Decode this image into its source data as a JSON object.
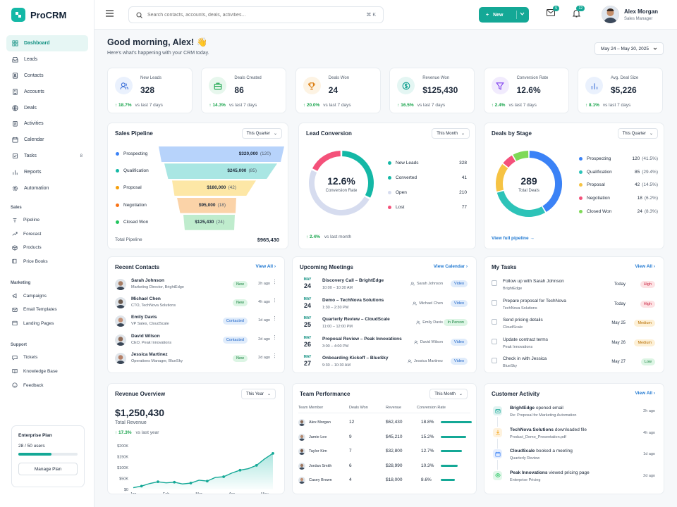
{
  "app": {
    "name": "ProCRM"
  },
  "sidebar": {
    "items": [
      {
        "label": "Dashboard",
        "icon": "grid-icon",
        "active": true
      },
      {
        "label": "Leads",
        "icon": "inbox-icon"
      },
      {
        "label": "Contacts",
        "icon": "contact-card-icon"
      },
      {
        "label": "Accounts",
        "icon": "building-icon"
      },
      {
        "label": "Deals",
        "icon": "money-icon"
      },
      {
        "label": "Activities",
        "icon": "clipboard-icon"
      },
      {
        "label": "Calendar",
        "icon": "calendar-icon"
      },
      {
        "label": "Tasks",
        "icon": "checklist-icon",
        "badge": "8"
      },
      {
        "label": "Reports",
        "icon": "chart-icon"
      },
      {
        "label": "Automation",
        "icon": "gear-icon"
      }
    ],
    "sections": [
      {
        "title": "Sales",
        "items": [
          {
            "label": "Pipeline",
            "icon": "pipeline-icon"
          },
          {
            "label": "Forecast",
            "icon": "trend-icon"
          },
          {
            "label": "Products",
            "icon": "box-icon"
          },
          {
            "label": "Price Books",
            "icon": "book-icon"
          }
        ]
      },
      {
        "title": "Marketing",
        "items": [
          {
            "label": "Campaigns",
            "icon": "megaphone-icon"
          },
          {
            "label": "Email Templates",
            "icon": "mail-icon"
          },
          {
            "label": "Landing Pages",
            "icon": "page-icon"
          }
        ]
      },
      {
        "title": "Support",
        "items": [
          {
            "label": "Tickets",
            "icon": "chat-icon"
          },
          {
            "label": "Knowledge Base",
            "icon": "book-open-icon"
          },
          {
            "label": "Feedback",
            "icon": "feedback-icon"
          }
        ]
      }
    ],
    "plan": {
      "title": "Enterprise Plan",
      "users": "28 / 50 users",
      "fill": 0.56,
      "button": "Manage Plan"
    }
  },
  "topbar": {
    "search_placeholder": "Search contacts, accounts, deals, activities...",
    "shortcut": "⌘ K",
    "new_label": "New",
    "mail_badge": "5",
    "notif_badge": "12",
    "user": {
      "name": "Alex Morgan",
      "role": "Sales Manager"
    }
  },
  "header": {
    "greeting": "Good morning, Alex! 👋",
    "subtitle": "Here's what's happening with your CRM today.",
    "date_range": "May 24 – May 30, 2025"
  },
  "kpis": [
    {
      "label": "New Leads",
      "value": "328",
      "trend": "↑ 18.7%",
      "vs": "vs last 7 days",
      "icon": "users-icon",
      "color": "#3b6fd8",
      "bg": "#eaf1fd"
    },
    {
      "label": "Deals Created",
      "value": "86",
      "trend": "↑ 14.3%",
      "vs": "vs last 7 days",
      "icon": "briefcase-icon",
      "color": "#16a34a",
      "bg": "#e7f7ed"
    },
    {
      "label": "Deals Won",
      "value": "24",
      "trend": "↑ 20.0%",
      "vs": "vs last 7 days",
      "icon": "trophy-icon",
      "color": "#d97706",
      "bg": "#fdf3e3"
    },
    {
      "label": "Revenue Won",
      "value": "$125,430",
      "trend": "↑ 16.5%",
      "vs": "vs last 7 days",
      "icon": "dollar-icon",
      "color": "#0f9f8e",
      "bg": "#e4f6f3"
    },
    {
      "label": "Conversion Rate",
      "value": "12.6%",
      "trend": "↑ 2.4%",
      "vs": "vs last 7 days",
      "icon": "funnel-icon",
      "color": "#7c3aed",
      "bg": "#f1ebfd"
    },
    {
      "label": "Avg. Deal Size",
      "value": "$5,226",
      "trend": "↑ 8.1%",
      "vs": "vs last 7 days",
      "icon": "bar-chart-icon",
      "color": "#3b6fd8",
      "bg": "#eaf1fd"
    }
  ],
  "pipeline": {
    "title": "Sales Pipeline",
    "period": "This Quarter",
    "stages": [
      {
        "name": "Prospecting",
        "amount": "$320,000",
        "count": "(120)",
        "value": 320000,
        "color": "#b7d3fb",
        "dot": "#3b82f6"
      },
      {
        "name": "Qualification",
        "amount": "$245,000",
        "count": "(85)",
        "value": 245000,
        "color": "#a9e6e3",
        "dot": "#14b8a6"
      },
      {
        "name": "Proposal",
        "amount": "$180,000",
        "count": "(42)",
        "value": 180000,
        "color": "#fde7a6",
        "dot": "#f59e0b"
      },
      {
        "name": "Negotiation",
        "amount": "$95,000",
        "count": "(18)",
        "value": 95000,
        "color": "#fbd3a8",
        "dot": "#f97316"
      },
      {
        "name": "Closed Won",
        "amount": "$125,430",
        "count": "(24)",
        "value": 125430,
        "color": "#bfeccd",
        "dot": "#22c55e"
      }
    ],
    "total_label": "Total Pipeline",
    "total": "$965,430"
  },
  "lead_conversion": {
    "title": "Lead Conversion",
    "period": "This Month",
    "center_value": "12.6%",
    "center_label": "Conversion Rate",
    "items": [
      {
        "name": "New Leads",
        "value": "328",
        "num": 328,
        "color": "#14b8a6"
      },
      {
        "name": "Converted",
        "value": "41",
        "num": 41,
        "color": "#14b8a6"
      },
      {
        "name": "Open",
        "value": "210",
        "num": 210,
        "color": "#d6dcef"
      },
      {
        "name": "Lost",
        "value": "77",
        "num": 77,
        "color": "#f4517a"
      }
    ],
    "trend": "↑ 2.4%",
    "vs": "vs last month"
  },
  "deals_by_stage": {
    "title": "Deals by Stage",
    "period": "This Quarter",
    "center_value": "289",
    "center_label": "Total Deals",
    "items": [
      {
        "name": "Prospecting",
        "count": "120",
        "pct": "(41.5%)",
        "num": 120,
        "color": "#3b82f6"
      },
      {
        "name": "Qualification",
        "count": "85",
        "pct": "(29.4%)",
        "num": 85,
        "color": "#2dc3b8"
      },
      {
        "name": "Proposal",
        "count": "42",
        "pct": "(14.5%)",
        "num": 42,
        "color": "#f6c343"
      },
      {
        "name": "Negotiation",
        "count": "18",
        "pct": "(6.2%)",
        "num": 18,
        "color": "#f4517a"
      },
      {
        "name": "Closed Won",
        "count": "24",
        "pct": "(8.3%)",
        "num": 24,
        "color": "#7ed957"
      }
    ],
    "link": "View full pipeline →"
  },
  "recent_contacts": {
    "title": "Recent Contacts",
    "link": "View All ›",
    "rows": [
      {
        "name": "Sarah Johnson",
        "role": "Marketing Director, BrightEdge",
        "status": "New",
        "time": "2h ago"
      },
      {
        "name": "Michael Chen",
        "role": "CTO, TechNova Solutions",
        "status": "New",
        "time": "4h ago"
      },
      {
        "name": "Emily Davis",
        "role": "VP Sales, CloudScale",
        "status": "Contacted",
        "time": "1d ago"
      },
      {
        "name": "David Wilson",
        "role": "CEO, Peak Innovations",
        "status": "Contacted",
        "time": "2d ago"
      },
      {
        "name": "Jessica Martinez",
        "role": "Operations Manager, BlueSky",
        "status": "New",
        "time": "2d ago"
      }
    ]
  },
  "meetings": {
    "title": "Upcoming Meetings",
    "link": "View Calendar ›",
    "rows": [
      {
        "month": "MAY",
        "day": "24",
        "title": "Discovery Call – BrightEdge",
        "time": "10:00 – 10:30 AM",
        "person": "Sarah Johnson",
        "type": "Video"
      },
      {
        "month": "MAY",
        "day": "24",
        "title": "Demo – TechNova Solutions",
        "time": "1:30 – 2:30 PM",
        "person": "Michael Chen",
        "type": "Video"
      },
      {
        "month": "MAY",
        "day": "25",
        "title": "Quarterly Review – CloudScale",
        "time": "11:00 – 12:00 PM",
        "person": "Emily Davis",
        "type": "In Person"
      },
      {
        "month": "MAY",
        "day": "26",
        "title": "Proposal Review – Peak Innovations",
        "time": "3:00 – 4:00 PM",
        "person": "David Wilson",
        "type": "Video"
      },
      {
        "month": "MAY",
        "day": "27",
        "title": "Onboarding Kickoff – BlueSky",
        "time": "9:30 – 10:30 AM",
        "person": "Jessica Martinez",
        "type": "Video"
      }
    ]
  },
  "tasks": {
    "title": "My Tasks",
    "link": "View All ›",
    "rows": [
      {
        "title": "Follow up with Sarah Johnson",
        "sub": "BrightEdge",
        "due": "Today",
        "priority": "High"
      },
      {
        "title": "Prepare proposal for TechNova",
        "sub": "TechNova Solutions",
        "due": "Today",
        "priority": "High"
      },
      {
        "title": "Send pricing details",
        "sub": "CloudScale",
        "due": "May 25",
        "priority": "Medium"
      },
      {
        "title": "Update contract terms",
        "sub": "Peak Innovations",
        "due": "May 26",
        "priority": "Medium"
      },
      {
        "title": "Check in with Jessica",
        "sub": "BlueSky",
        "due": "May 27",
        "priority": "Low"
      }
    ]
  },
  "revenue": {
    "title": "Revenue Overview",
    "period": "This Year",
    "value": "$1,250,430",
    "label": "Total Revenue",
    "trend": "↑ 17.3%",
    "vs": "vs last year"
  },
  "chart_data": {
    "type": "area",
    "categories": [
      "Jan",
      "Feb",
      "Mar",
      "Apr",
      "May"
    ],
    "x": [
      0,
      0.5,
      1,
      1.5,
      2,
      2.5,
      3,
      3.5,
      4,
      4.5,
      5,
      5.5,
      6,
      6.5,
      7,
      7.5,
      8,
      8.5
    ],
    "values": [
      8,
      15,
      27,
      35,
      30,
      33,
      25,
      29,
      42,
      38,
      55,
      58,
      75,
      88,
      95,
      110,
      140,
      165
    ],
    "yticks": [
      "$200K",
      "$150K",
      "$100K",
      "$50K",
      "$0"
    ],
    "ylim": [
      0,
      200
    ],
    "x_tick_positions": [
      0,
      2,
      4,
      6,
      8
    ]
  },
  "team": {
    "title": "Team Performance",
    "period": "This Month",
    "columns": [
      "Team Member",
      "Deals Won",
      "Revenue",
      "Conversion Rate"
    ],
    "rows": [
      {
        "name": "Alex Morgan",
        "deals": "12",
        "revenue": "$62,430",
        "rate": "18.8%",
        "num": 18.8
      },
      {
        "name": "Jamie Lee",
        "deals": "9",
        "revenue": "$45,210",
        "rate": "15.2%",
        "num": 15.2
      },
      {
        "name": "Taylor Kim",
        "deals": "7",
        "revenue": "$32,800",
        "rate": "12.7%",
        "num": 12.7
      },
      {
        "name": "Jordan Smith",
        "deals": "6",
        "revenue": "$28,990",
        "rate": "10.3%",
        "num": 10.3
      },
      {
        "name": "Casey Brown",
        "deals": "4",
        "revenue": "$18,000",
        "rate": "8.6%",
        "num": 8.6
      }
    ]
  },
  "activity": {
    "title": "Customer Activity",
    "link": "View All ›",
    "rows": [
      {
        "strong": "BrightEdge",
        "text": " opened email",
        "sub": "Re: Proposal for Marketing Automation",
        "time": "2h ago",
        "icon": "mail-icon",
        "color": "#14a896"
      },
      {
        "strong": "TechNova Solutions",
        "text": " downloaded file",
        "sub": "Product_Demo_Presentation.pdf",
        "time": "4h ago",
        "icon": "download-icon",
        "color": "#f59e0b"
      },
      {
        "strong": "CloudScale",
        "text": " booked a meeting",
        "sub": "Quarterly Review",
        "time": "1d ago",
        "icon": "calendar-icon",
        "color": "#3b82f6"
      },
      {
        "strong": "Peak Innovations",
        "text": " viewed pricing page",
        "sub": "Enterprise Pricing",
        "time": "2d ago",
        "icon": "eye-icon",
        "color": "#22c55e"
      }
    ]
  }
}
